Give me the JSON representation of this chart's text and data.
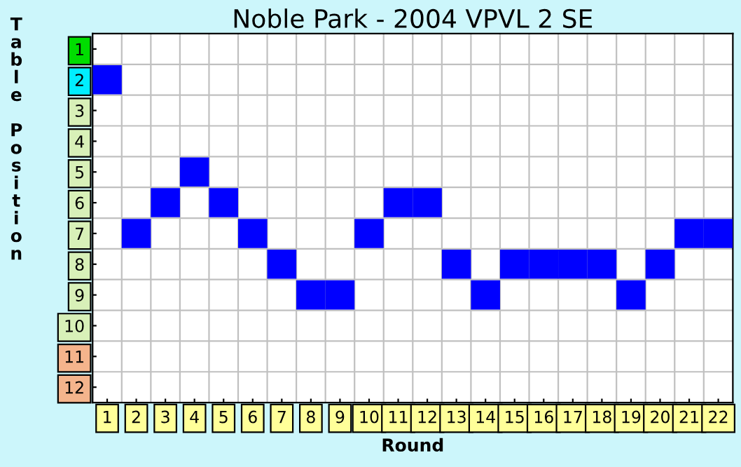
{
  "chart_data": {
    "type": "scatter",
    "title": "Noble Park - 2004 VPVL 2 SE",
    "xlabel": "Round",
    "ylabel": "Table Position",
    "categories": [
      "1",
      "2",
      "3",
      "4",
      "5",
      "6",
      "7",
      "8",
      "9",
      "10",
      "11",
      "12",
      "13",
      "14",
      "15",
      "16",
      "17",
      "18",
      "19",
      "20",
      "21",
      "22"
    ],
    "series": [
      {
        "color": "#0000ff",
        "values": [
          2,
          7,
          6,
          5,
          6,
          7,
          8,
          9,
          9,
          7,
          6,
          6,
          8,
          9,
          8,
          8,
          8,
          8,
          9,
          8,
          7,
          7
        ]
      }
    ],
    "ylim": [
      12.5,
      0.5
    ],
    "yticks": [
      1,
      2,
      3,
      4,
      5,
      6,
      7,
      8,
      9,
      10,
      11,
      12
    ],
    "marker": "square",
    "grid": true,
    "legend": false
  }
}
